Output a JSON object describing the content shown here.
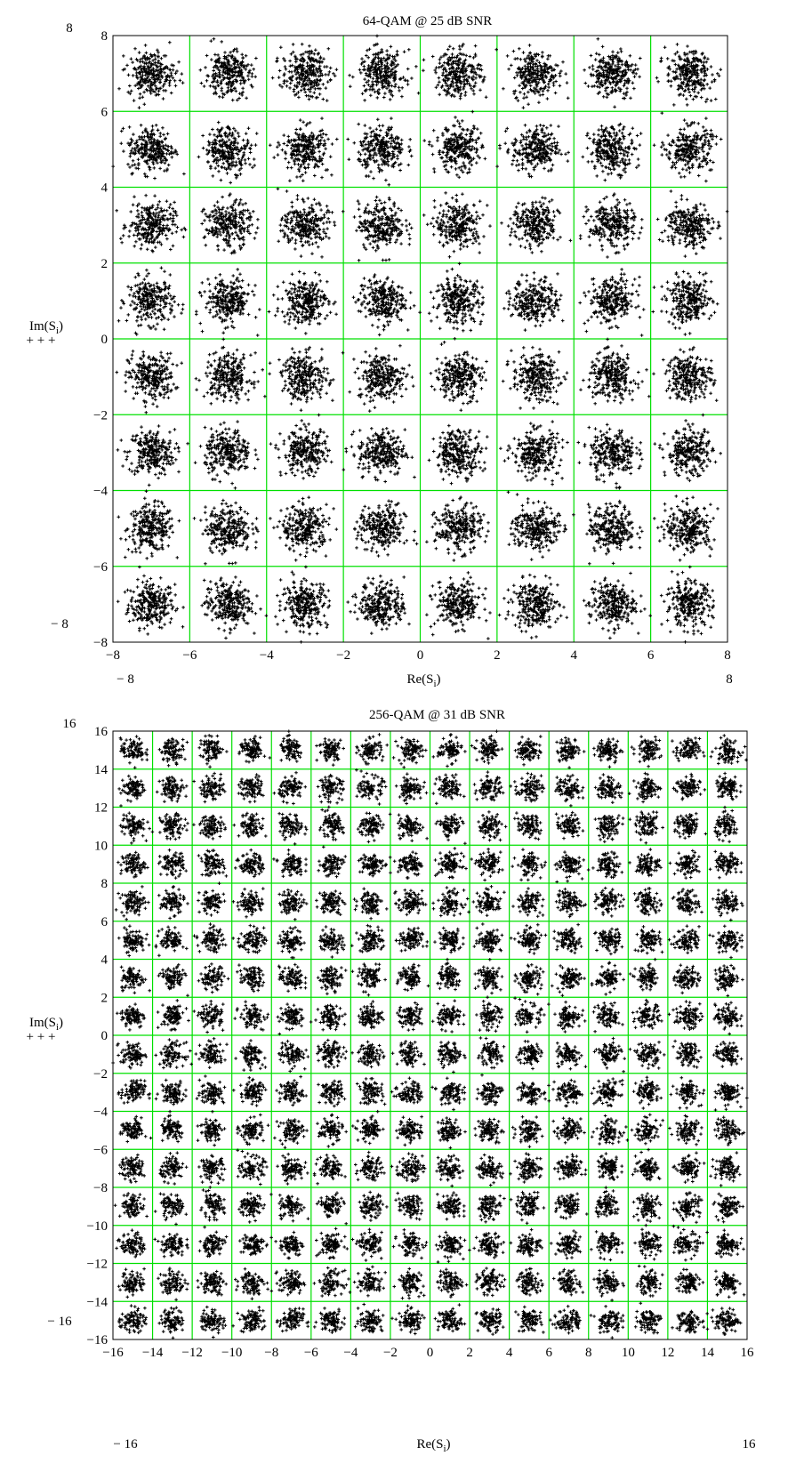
{
  "chart_data": [
    {
      "type": "scatter",
      "title": "64-QAM @ 25 dB SNR",
      "xlabel": "Re(S_i)",
      "ylabel": "Im(S_i)",
      "xlabel_parts": {
        "base": "Re(S",
        "sub": "i",
        "close": ")"
      },
      "ylabel_parts": {
        "base": "Im(S",
        "sub": "i",
        "close": ")"
      },
      "xlim": [
        -8,
        8
      ],
      "ylim": [
        -8,
        8
      ],
      "xticks": [
        "−8",
        "−6",
        "−4",
        "−2",
        "0",
        "2",
        "4",
        "6",
        "8"
      ],
      "yticks": [
        "−8",
        "−6",
        "−4",
        "−2",
        "0",
        "2",
        "4",
        "6",
        "8"
      ],
      "range_labels": {
        "ymax": "8",
        "ymin": "− 8",
        "xmin": "− 8",
        "xmax": "8"
      },
      "legend_marker": "+ + +",
      "grid": true,
      "grid_color": "#00e000",
      "marker": "+",
      "marker_color": "#000000",
      "constellation_levels": [
        -7,
        -5,
        -3,
        -1,
        1,
        3,
        5,
        7
      ],
      "points_per_symbol": 260,
      "noise_sigma": 0.3
    },
    {
      "type": "scatter",
      "title": "256-QAM @ 31 dB SNR",
      "xlabel": "Re(S_i)",
      "ylabel": "Im(S_i)",
      "xlabel_parts": {
        "base": "Re(S",
        "sub": "i",
        "close": ")"
      },
      "ylabel_parts": {
        "base": "Im(S",
        "sub": "i",
        "close": ")"
      },
      "xlim": [
        -16,
        16
      ],
      "ylim": [
        -16,
        16
      ],
      "xticks": [
        "−16",
        "−14",
        "−12",
        "−10",
        "−8",
        "−6",
        "−4",
        "−2",
        "0",
        "2",
        "4",
        "6",
        "8",
        "10",
        "12",
        "14",
        "16"
      ],
      "yticks": [
        "−16",
        "−14",
        "−12",
        "−10",
        "−8",
        "−6",
        "−4",
        "−2",
        "0",
        "2",
        "4",
        "6",
        "8",
        "10",
        "12",
        "14",
        "16"
      ],
      "range_labels": {
        "ymax": "16",
        "ymin": "− 16",
        "xmin": "− 16",
        "xmax": "16"
      },
      "legend_marker": "+ + +",
      "grid": true,
      "grid_color": "#00e000",
      "marker": "+",
      "marker_color": "#000000",
      "constellation_levels": [
        -15,
        -13,
        -11,
        -9,
        -7,
        -5,
        -3,
        -1,
        1,
        3,
        5,
        7,
        9,
        11,
        13,
        15
      ],
      "points_per_symbol": 90,
      "noise_sigma": 0.3
    }
  ]
}
